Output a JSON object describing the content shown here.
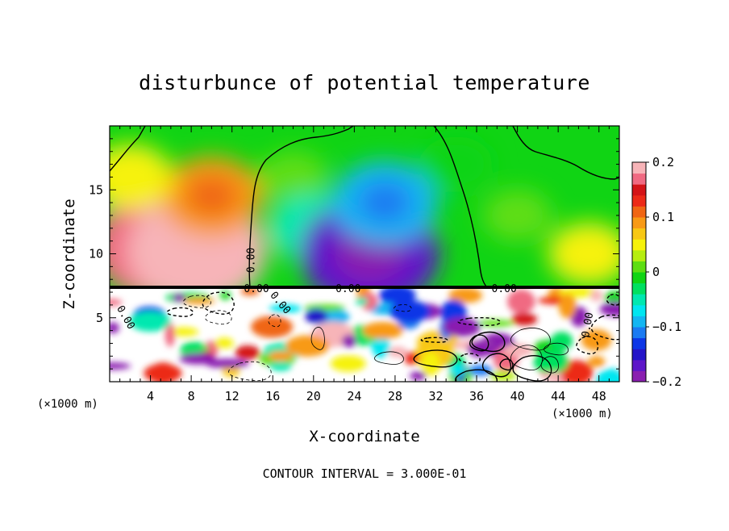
{
  "chart_data": {
    "type": "heatmap",
    "title": "disturbunce of potential temperature",
    "xlabel": "X-coordinate",
    "ylabel": "Z-coordinate",
    "x_unit_left": "(×1000 m)",
    "x_unit_right": "(×1000 m)",
    "xlim": [
      0,
      50
    ],
    "ylim": [
      0,
      20
    ],
    "x_ticks": [
      4,
      8,
      12,
      16,
      20,
      24,
      28,
      32,
      36,
      40,
      44,
      48
    ],
    "y_ticks": [
      5,
      10,
      15
    ],
    "colorbar": {
      "min": -0.2,
      "max": 0.2,
      "tick_labels": [
        "0.2",
        "0.1",
        "0",
        "−0.1",
        "−0.2"
      ],
      "tick_values": [
        0.2,
        0.1,
        0,
        -0.1,
        -0.2
      ],
      "colors": [
        "#8a1fb0",
        "#5e17c9",
        "#2414c8",
        "#0d36e6",
        "#1b7bf2",
        "#13b6f2",
        "#00e6f0",
        "#00e8b0",
        "#00e060",
        "#10d414",
        "#5ede12",
        "#b6ee10",
        "#f6f20a",
        "#f8c814",
        "#f89a16",
        "#f06614",
        "#ec2a18",
        "#d41418",
        "#f06a82",
        "#f7b4b8"
      ]
    },
    "contour_labels": [
      "0.00",
      "0.00",
      "0.00",
      "0.00",
      "0.00",
      "0.00",
      "0.00"
    ],
    "footer": "CONTOUR INTERVAL = 3.000E-01",
    "upper_field_blobs": [
      {
        "x": 5,
        "z": 10.5,
        "value": 0.17
      },
      {
        "x": 8.5,
        "z": 10.2,
        "value": 0.18
      },
      {
        "x": 10,
        "z": 14.5,
        "value": 0.09
      },
      {
        "x": 2,
        "z": 16,
        "value": 0.05
      },
      {
        "x": 18,
        "z": 16,
        "value": 0.01
      },
      {
        "x": 20,
        "z": 12,
        "value": -0.06
      },
      {
        "x": 25.5,
        "z": 10,
        "value": -0.18
      },
      {
        "x": 27,
        "z": 14,
        "value": -0.1
      },
      {
        "x": 34,
        "z": 17,
        "value": -0.02
      },
      {
        "x": 40,
        "z": 13,
        "value": 0.01
      },
      {
        "x": 47,
        "z": 10,
        "value": 0.04
      }
    ]
  }
}
